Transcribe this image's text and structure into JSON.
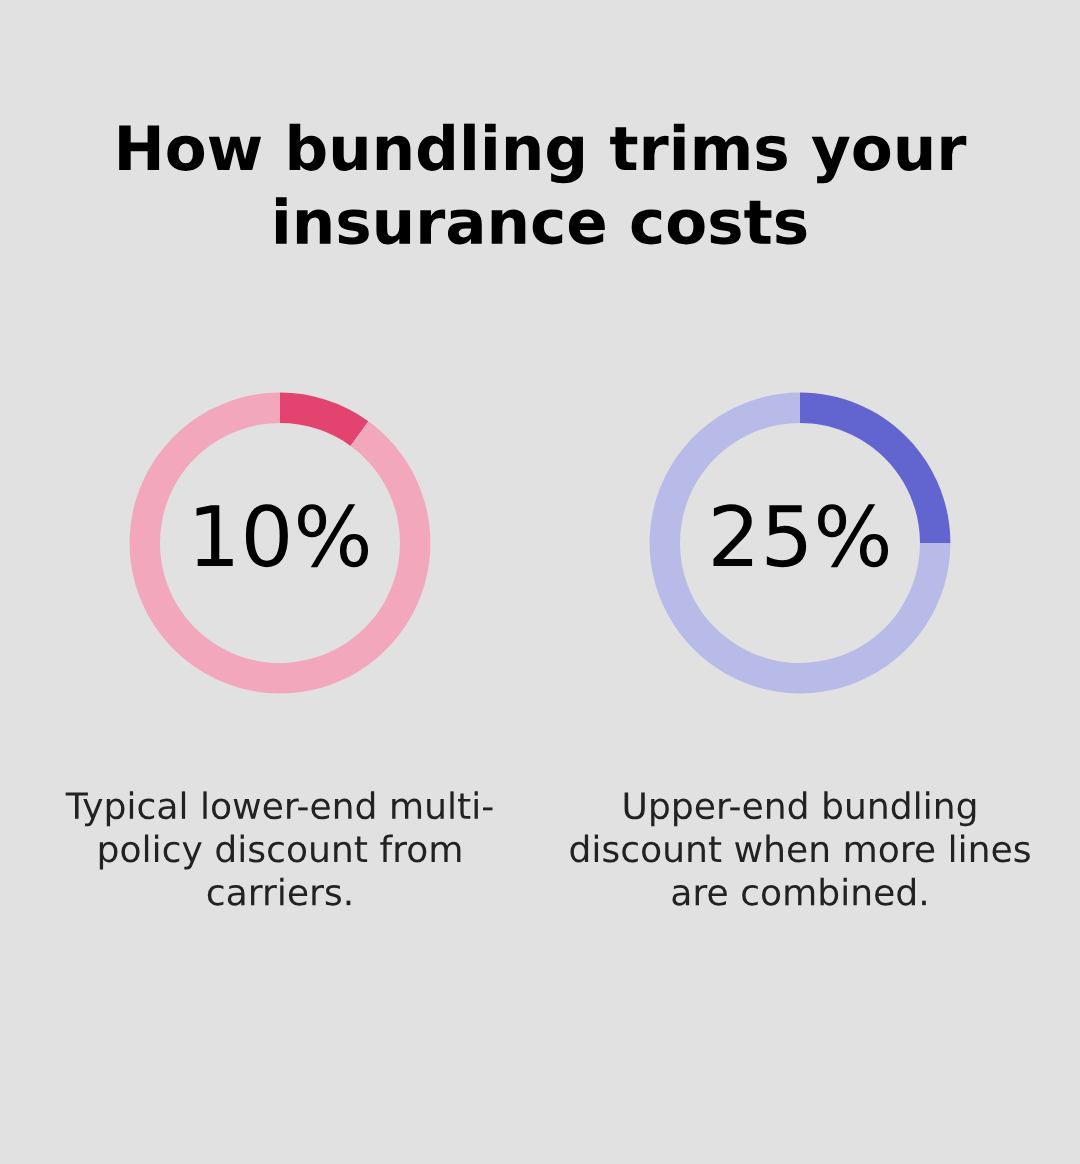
{
  "chart_data": [
    {
      "type": "donut",
      "title": "How bundling trims your\ninsurance costs",
      "categories": [
        null,
        null
      ],
      "values": [
        10,
        90
      ],
      "colors": [
        "#e3446f",
        "#f2a7bd"
      ],
      "value_labels": [
        "10%",
        null
      ],
      "annotations": [
        "Typical lower-end multi-\npolicy discount from\ncarriers."
      ]
    },
    {
      "type": "donut",
      "categories": [
        null,
        null
      ],
      "values": [
        25,
        75
      ],
      "colors": [
        "#6264d0",
        "#b8bbe8"
      ],
      "value_labels": [
        "25%",
        null
      ],
      "annotations": [
        "Upper-end bundling\ndiscount when more lines\nare combined."
      ]
    }
  ]
}
